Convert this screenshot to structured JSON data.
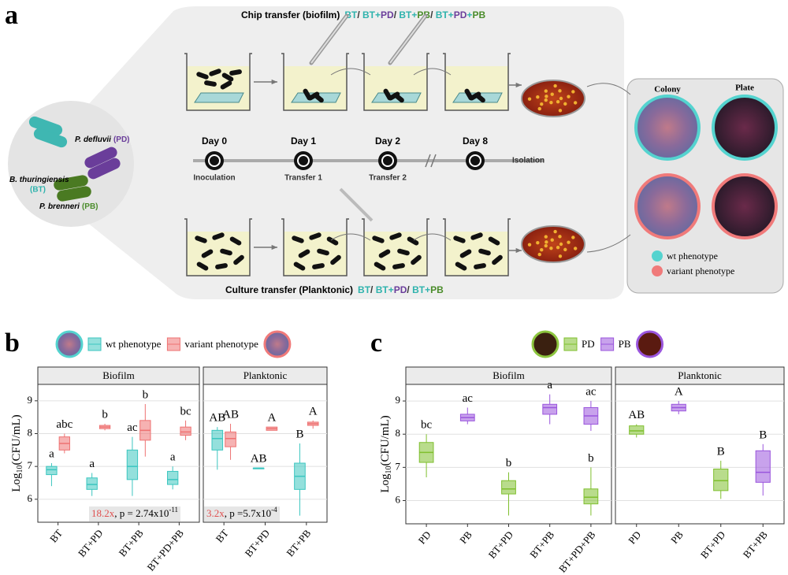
{
  "panel_labels": [
    "a",
    "b",
    "c"
  ],
  "panel_a": {
    "chip_title": "Chip  transfer (biofilm)",
    "chip_combo": [
      {
        "text": "BT",
        "color": "#2fb3ad"
      },
      {
        "text": "/ ",
        "color": "#333333"
      },
      {
        "text": "BT",
        "color": "#2fb3ad"
      },
      {
        "text": "+",
        "color": "#2fb3ad"
      },
      {
        "text": "PD",
        "color": "#6a3d9a"
      },
      {
        "text": "/ ",
        "color": "#333333"
      },
      {
        "text": "BT",
        "color": "#2fb3ad"
      },
      {
        "text": "+",
        "color": "#2fb3ad"
      },
      {
        "text": "PB",
        "color": "#4a8c2a"
      },
      {
        "text": "/  ",
        "color": "#333333"
      },
      {
        "text": "BT",
        "color": "#2fb3ad"
      },
      {
        "text": "+",
        "color": "#2fb3ad"
      },
      {
        "text": "PD",
        "color": "#6a3d9a"
      },
      {
        "text": "+",
        "color": "#2fb3ad"
      },
      {
        "text": "PB",
        "color": "#4a8c2a"
      }
    ],
    "culture_title": "Culture  transfer (Planktonic)",
    "culture_combo": [
      {
        "text": "BT",
        "color": "#2fb3ad"
      },
      {
        "text": "/ ",
        "color": "#333333"
      },
      {
        "text": "BT",
        "color": "#2fb3ad"
      },
      {
        "text": "+",
        "color": "#2fb3ad"
      },
      {
        "text": "PD",
        "color": "#6a3d9a"
      },
      {
        "text": "/ ",
        "color": "#333333"
      },
      {
        "text": "BT",
        "color": "#2fb3ad"
      },
      {
        "text": "+",
        "color": "#2fb3ad"
      },
      {
        "text": "PB",
        "color": "#4a8c2a"
      }
    ],
    "days": [
      "Day 0",
      "Day 1",
      "Day 2",
      "Day 8"
    ],
    "steps": [
      "Inoculation",
      "Transfer 1",
      "Transfer 2",
      "Isolation"
    ],
    "species": [
      {
        "name": "B. thuringiensis",
        "abbr": "(BT)",
        "color": "#2fb3ad"
      },
      {
        "name": "P. defluvii",
        "abbr": "(PD)",
        "color": "#6a3d9a"
      },
      {
        "name": "P. brenneri",
        "abbr": "(PB)",
        "color": "#4a8c2a"
      }
    ],
    "colony": "Colony",
    "plate": "Plate",
    "phenotypes": [
      {
        "name": "wt phenotype",
        "color": "#54d3cf"
      },
      {
        "name": "variant phenotype",
        "color": "#f07a7a"
      }
    ]
  },
  "chart_data": [
    {
      "type": "box",
      "title": "Biofilm",
      "dodge": true,
      "ylabel": "Log",
      "ylabel_sub": "10",
      "ylabel_rest": "(CFU/mL)",
      "categories": [
        "BT",
        "BT+PD",
        "BT+PB",
        "BT+PD+PB"
      ],
      "ylim": [
        5.3,
        9.5
      ],
      "yticks": [
        6,
        7,
        8,
        9
      ],
      "grid": true,
      "annotation": {
        "fold": "18.2x",
        "text": ", p = 2.74x10",
        "exp": "-11"
      },
      "series": [
        {
          "name": "wt phenotype",
          "color": "#3cc6c0",
          "min": [
            6.4,
            6.1,
            6.1,
            6.3
          ],
          "q1": [
            6.75,
            6.3,
            6.6,
            6.45
          ],
          "median": [
            6.9,
            6.45,
            7.0,
            6.6
          ],
          "q3": [
            7.0,
            6.65,
            7.5,
            6.85
          ],
          "max": [
            7.1,
            6.8,
            7.9,
            7.0
          ],
          "letters": [
            "a",
            "a",
            "ac",
            "a"
          ]
        },
        {
          "name": "variant phenotype",
          "color": "#ee7272",
          "min": [
            7.4,
            8.1,
            7.3,
            7.8
          ],
          "q1": [
            7.5,
            8.15,
            7.8,
            7.95
          ],
          "median": [
            7.7,
            8.2,
            8.1,
            8.05
          ],
          "q3": [
            7.9,
            8.25,
            8.4,
            8.2
          ],
          "max": [
            8.0,
            8.3,
            8.9,
            8.4
          ],
          "letters": [
            "abc",
            "b",
            "b",
            "bc"
          ]
        }
      ]
    },
    {
      "type": "box",
      "title": "Planktonic",
      "dodge": true,
      "categories": [
        "BT",
        "BT+PD",
        "BT+PB"
      ],
      "ylim": [
        5.3,
        9.5
      ],
      "yticks": [
        6,
        7,
        8,
        9
      ],
      "grid": true,
      "annotation": {
        "fold": "3.2x",
        "text": ", p =5.7x10",
        "exp": "-4"
      },
      "series": [
        {
          "name": "wt phenotype",
          "color": "#3cc6c0",
          "min": [
            6.9,
            6.95,
            5.5
          ],
          "q1": [
            7.5,
            6.95,
            6.3
          ],
          "median": [
            7.85,
            6.95,
            6.7
          ],
          "q3": [
            8.1,
            6.95,
            7.1
          ],
          "max": [
            8.2,
            6.95,
            7.7
          ],
          "letters": [
            "AB",
            "AB",
            "B"
          ]
        },
        {
          "name": "variant phenotype",
          "color": "#ee7272",
          "min": [
            7.2,
            8.1,
            8.15
          ],
          "q1": [
            7.6,
            8.1,
            8.25
          ],
          "median": [
            7.85,
            8.15,
            8.3
          ],
          "q3": [
            8.05,
            8.2,
            8.35
          ],
          "max": [
            8.3,
            8.2,
            8.4
          ],
          "letters": [
            "AB",
            "A",
            "A"
          ]
        }
      ]
    },
    {
      "type": "box",
      "title": "Biofilm",
      "dodge": false,
      "ylabel": "Log",
      "ylabel_sub": "10",
      "ylabel_rest": "(CFU/mL)",
      "categories": [
        "PD",
        "PB",
        "BT+PD",
        "BT+PB",
        "BT+PD+PB"
      ],
      "ylim": [
        5.3,
        9.5
      ],
      "yticks": [
        6,
        7,
        8,
        9
      ],
      "grid": true,
      "series": [
        {
          "name": "PD",
          "color": "#7fbf2e",
          "min": [
            6.7,
            null,
            5.55,
            null,
            5.55
          ],
          "q1": [
            7.15,
            null,
            6.2,
            null,
            5.9
          ],
          "median": [
            7.45,
            null,
            6.35,
            null,
            6.1
          ],
          "q3": [
            7.75,
            null,
            6.6,
            null,
            6.35
          ],
          "max": [
            8.0,
            null,
            6.85,
            null,
            7.0
          ],
          "letters": [
            "bc",
            null,
            "b",
            null,
            "b"
          ]
        },
        {
          "name": "PB",
          "color": "#9a55dd",
          "min": [
            null,
            8.3,
            null,
            8.3,
            8.1
          ],
          "q1": [
            null,
            8.4,
            null,
            8.6,
            8.3
          ],
          "median": [
            null,
            8.5,
            null,
            8.8,
            8.55
          ],
          "q3": [
            null,
            8.6,
            null,
            8.9,
            8.8
          ],
          "max": [
            null,
            8.8,
            null,
            9.2,
            9.0
          ],
          "letters": [
            null,
            "ac",
            null,
            "a",
            "ac"
          ]
        }
      ]
    },
    {
      "type": "box",
      "title": "Planktonic",
      "dodge": false,
      "categories": [
        "PD",
        "PB",
        "BT+PD",
        "BT+PB"
      ],
      "ylim": [
        5.3,
        9.5
      ],
      "yticks": [
        6,
        7,
        8,
        9
      ],
      "grid": true,
      "series": [
        {
          "name": "PD",
          "color": "#7fbf2e",
          "min": [
            7.9,
            null,
            6.05,
            null
          ],
          "q1": [
            8.0,
            null,
            6.3,
            null
          ],
          "median": [
            8.1,
            null,
            6.6,
            null
          ],
          "q3": [
            8.25,
            null,
            6.95,
            null
          ],
          "max": [
            8.3,
            null,
            7.2,
            null
          ],
          "letters": [
            "AB",
            null,
            "B",
            null
          ]
        },
        {
          "name": "PB",
          "color": "#9a55dd",
          "min": [
            null,
            8.6,
            null,
            6.15
          ],
          "q1": [
            null,
            8.7,
            null,
            6.55
          ],
          "median": [
            null,
            8.8,
            null,
            6.85
          ],
          "q3": [
            null,
            8.9,
            null,
            7.5
          ],
          "max": [
            null,
            9.0,
            null,
            7.7
          ],
          "letters": [
            null,
            "A",
            null,
            "B"
          ]
        }
      ]
    }
  ]
}
